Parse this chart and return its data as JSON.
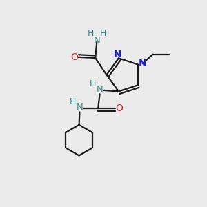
{
  "bg_color": "#ebebeb",
  "bond_color": "#1a1a1a",
  "N_color": "#2222cc",
  "O_color": "#cc2222",
  "NH_color": "#3a8888",
  "lw": 1.6,
  "dpi": 100,
  "figw": 3.0,
  "figh": 3.0,
  "xlim": [
    0,
    10
  ],
  "ylim": [
    0,
    10
  ]
}
